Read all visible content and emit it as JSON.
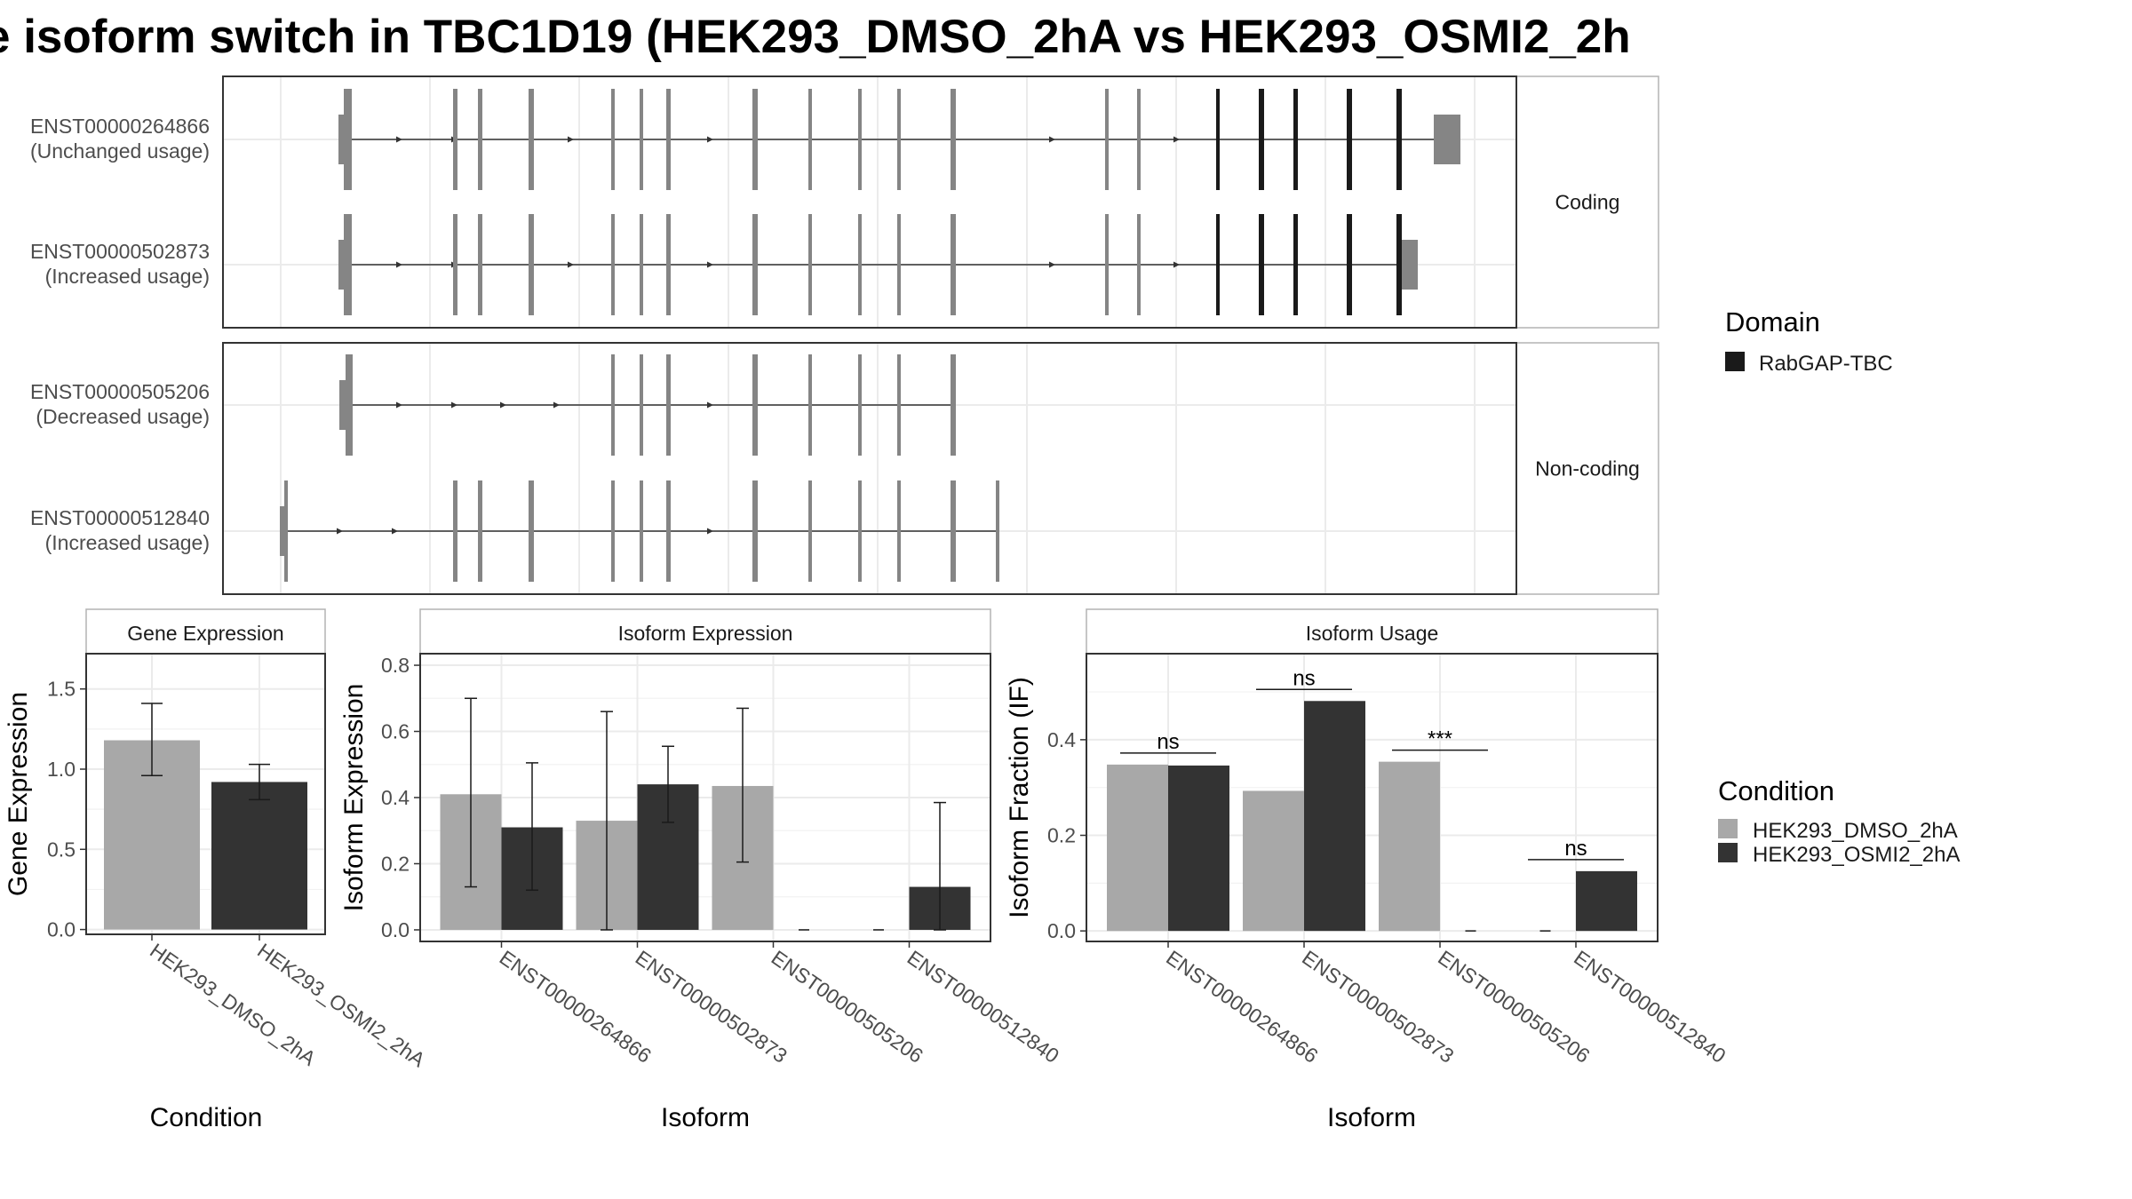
{
  "title": "e isoform switch in TBC1D19 (HEK293_DMSO_2hA vs HEK293_OSMI2_2h",
  "colors": {
    "dmso": "#a8a8a8",
    "osmi": "#333333",
    "exon": "#858585",
    "domain": "#1a1a1a",
    "grid": "#ebebeb",
    "panel_border": "#333333",
    "strip_border": "#b3b3b3"
  },
  "transcript_structure": {
    "panels": [
      {
        "label": "Coding",
        "transcripts": [
          "ENST00000264866",
          "ENST00000502873"
        ]
      },
      {
        "label": "Non-coding",
        "transcripts": [
          "ENST00000505206",
          "ENST00000512840"
        ]
      }
    ],
    "transcripts": [
      {
        "id": "ENST00000264866",
        "usage": "(Unchanged usage)"
      },
      {
        "id": "ENST00000502873",
        "usage": "(Increased usage)"
      },
      {
        "id": "ENST00000505206",
        "usage": "(Decreased usage)"
      },
      {
        "id": "ENST00000512840",
        "usage": "(Increased usage)"
      }
    ],
    "domain_legend": {
      "title": "Domain",
      "items": [
        "RabGAP-TBC"
      ]
    }
  },
  "chart_data": [
    {
      "type": "bar",
      "title": "Gene Expression",
      "xlabel": "Condition",
      "ylabel": "Gene Expression",
      "categories": [
        "HEK293_DMSO_2hA",
        "HEK293_OSMI2_2hA"
      ],
      "values": [
        1.18,
        0.92
      ],
      "error_low": [
        0.96,
        0.81
      ],
      "error_high": [
        1.41,
        1.03
      ],
      "ylim": [
        -0.03,
        1.72
      ],
      "yticks": [
        "0.0",
        "0.5",
        "1.0",
        "1.5"
      ],
      "grid": true
    },
    {
      "type": "bar",
      "title": "Isoform Expression",
      "xlabel": "Isoform",
      "ylabel": "Isoform Expression",
      "categories": [
        "ENST00000264866",
        "ENST00000502873",
        "ENST00000505206",
        "ENST00000512840"
      ],
      "series": [
        {
          "name": "HEK293_DMSO_2hA",
          "values": [
            0.41,
            0.33,
            0.435,
            0.0
          ],
          "error_low": [
            0.13,
            0.0,
            0.205,
            0.0
          ],
          "error_high": [
            0.7,
            0.66,
            0.67,
            0.0
          ]
        },
        {
          "name": "HEK293_OSMI2_2hA",
          "values": [
            0.31,
            0.44,
            0.0,
            0.13
          ],
          "error_low": [
            0.12,
            0.325,
            0.0,
            0.0
          ],
          "error_high": [
            0.505,
            0.555,
            0.0,
            0.385
          ]
        }
      ],
      "ylim": [
        -0.035,
        0.835
      ],
      "yticks": [
        "0.0",
        "0.2",
        "0.4",
        "0.6",
        "0.8"
      ],
      "grid": true
    },
    {
      "type": "bar",
      "title": "Isoform Usage",
      "xlabel": "Isoform",
      "ylabel": "Isoform Fraction (IF)",
      "categories": [
        "ENST00000264866",
        "ENST00000502873",
        "ENST00000505206",
        "ENST00000512840"
      ],
      "series": [
        {
          "name": "HEK293_DMSO_2hA",
          "values": [
            0.348,
            0.293,
            0.354,
            0.0
          ]
        },
        {
          "name": "HEK293_OSMI2_2hA",
          "values": [
            0.346,
            0.481,
            0.0,
            0.125
          ]
        }
      ],
      "significance": [
        "ns",
        "ns",
        "***",
        "ns"
      ],
      "ylim": [
        -0.022,
        0.58
      ],
      "yticks": [
        "0.0",
        "0.2",
        "0.4"
      ],
      "grid": true
    }
  ],
  "condition_legend": {
    "title": "Condition",
    "items": [
      "HEK293_DMSO_2hA",
      "HEK293_OSMI2_2hA"
    ]
  }
}
